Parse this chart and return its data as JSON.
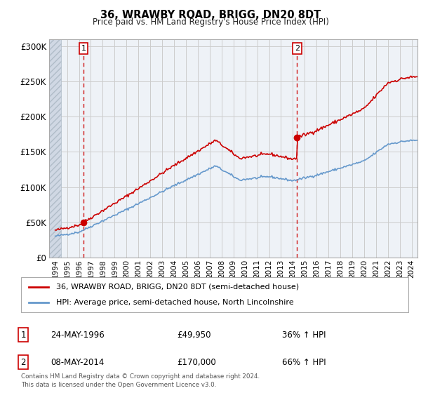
{
  "title": "36, WRAWBY ROAD, BRIGG, DN20 8DT",
  "subtitle": "Price paid vs. HM Land Registry's House Price Index (HPI)",
  "property_label": "36, WRAWBY ROAD, BRIGG, DN20 8DT (semi-detached house)",
  "hpi_label": "HPI: Average price, semi-detached house, North Lincolnshire",
  "copyright": "Contains HM Land Registry data © Crown copyright and database right 2024.\nThis data is licensed under the Open Government Licence v3.0.",
  "sales": [
    {
      "num": 1,
      "date": "24-MAY-1996",
      "price": 49950,
      "pct": "36% ↑ HPI",
      "year": 1996.39
    },
    {
      "num": 2,
      "date": "08-MAY-2014",
      "price": 170000,
      "pct": "66% ↑ HPI",
      "year": 2014.36
    }
  ],
  "ylim": [
    0,
    310000
  ],
  "yticks": [
    0,
    50000,
    100000,
    150000,
    200000,
    250000,
    300000
  ],
  "ytick_labels": [
    "£0",
    "£50K",
    "£100K",
    "£150K",
    "£200K",
    "£250K",
    "£300K"
  ],
  "xlim_start": 1993.5,
  "xlim_end": 2024.5,
  "hatch_end": 1994.5,
  "red_color": "#cc0000",
  "blue_color": "#6699cc",
  "bg_color": "#eef2f7",
  "grid_color": "#cccccc",
  "hatch_color": "#d0d8e4",
  "hatch_edge_color": "#b0bcc8"
}
